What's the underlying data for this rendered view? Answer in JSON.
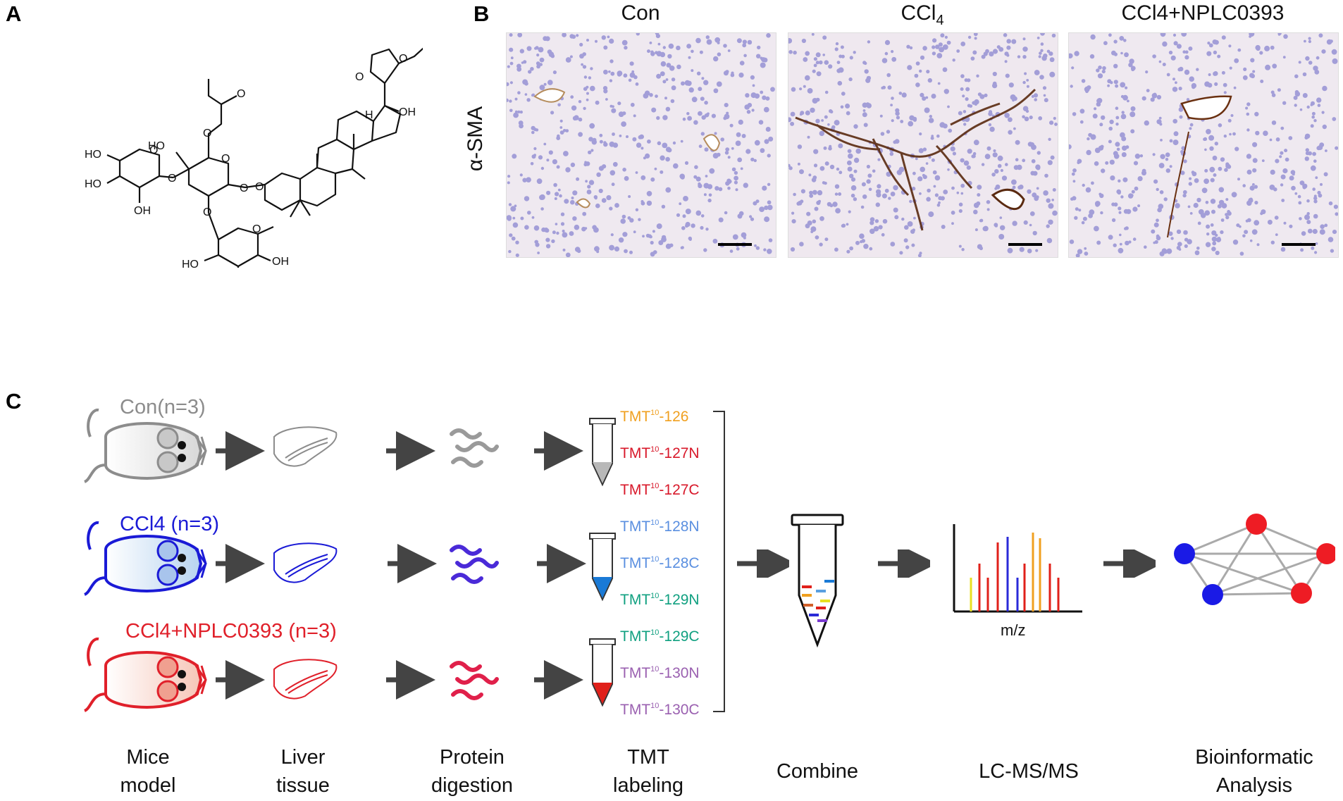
{
  "panels": {
    "a": "A",
    "b": "B",
    "c": "C"
  },
  "panel_b": {
    "row_label": "α-SMA",
    "images": [
      {
        "title": "Con"
      },
      {
        "title": "CCl",
        "title_sub": "4"
      },
      {
        "title": "CCl4+NPLC0393"
      }
    ]
  },
  "panel_a": {
    "atom_labels": {
      "ho": "HO",
      "oh": "OH",
      "o": "O",
      "h": "H"
    }
  },
  "panel_c": {
    "groups": [
      {
        "label": "Con(n=3)",
        "color": "#8c8c8c"
      },
      {
        "label": "CCl4 (n=3)",
        "color": "#1a1ad6"
      },
      {
        "label": "CCl4+NPLC0393 (n=3)",
        "color": "#e0202a"
      }
    ],
    "tmt_prefix": "TMT",
    "tmt_sup": "10",
    "tmt_tags": [
      {
        "suffix": "-126",
        "color": "#f0a020"
      },
      {
        "suffix": "-127N",
        "color": "#d8182a"
      },
      {
        "suffix": "-127C",
        "color": "#d8182a"
      },
      {
        "suffix": "-128N",
        "color": "#5a8fe0"
      },
      {
        "suffix": "-128C",
        "color": "#5a8fe0"
      },
      {
        "suffix": "-129N",
        "color": "#10a080"
      },
      {
        "suffix": "-129C",
        "color": "#10a080"
      },
      {
        "suffix": "-130N",
        "color": "#9a60b0"
      },
      {
        "suffix": "-130C",
        "color": "#9a60b0"
      }
    ],
    "mz_label": "m/z",
    "steps": [
      {
        "line1": "Mice",
        "line2": "model"
      },
      {
        "line1": "Liver",
        "line2": "tissue"
      },
      {
        "line1": "Protein",
        "line2": "digestion"
      },
      {
        "line1": "TMT",
        "line2": "labeling"
      },
      {
        "line1": "Combine",
        "line2": ""
      },
      {
        "line1": "LC-MS/MS",
        "line2": ""
      },
      {
        "line1": "Bioinformatic",
        "line2": "Analysis"
      }
    ]
  }
}
